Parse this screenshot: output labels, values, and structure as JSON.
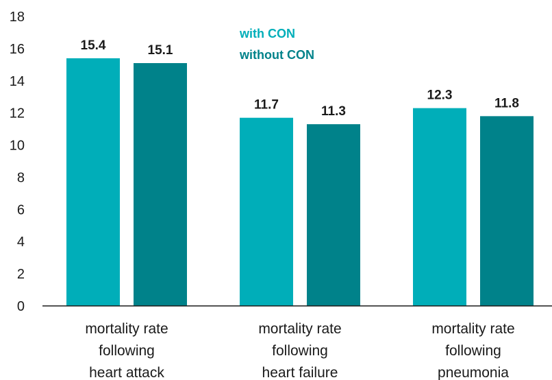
{
  "chart_data": {
    "type": "bar",
    "categories": [
      [
        "mortality rate",
        "following",
        "heart attack"
      ],
      [
        "mortality rate",
        "following",
        "heart failure"
      ],
      [
        "mortality rate",
        "following",
        "pneumonia"
      ]
    ],
    "series": [
      {
        "name": "with CON",
        "color": "#00aeb9",
        "values": [
          15.4,
          11.7,
          12.3
        ]
      },
      {
        "name": "without CON",
        "color": "#00828a",
        "values": [
          15.1,
          11.3,
          11.8
        ]
      }
    ],
    "title": "",
    "xlabel": "",
    "ylabel": "",
    "ylim": [
      0,
      18
    ],
    "yticks": [
      "0",
      "2",
      "4",
      "6",
      "8",
      "10",
      "12",
      "14",
      "16",
      "18"
    ],
    "grid": false,
    "legend_position": "top-center",
    "axis_color": "#1a1a1a"
  }
}
